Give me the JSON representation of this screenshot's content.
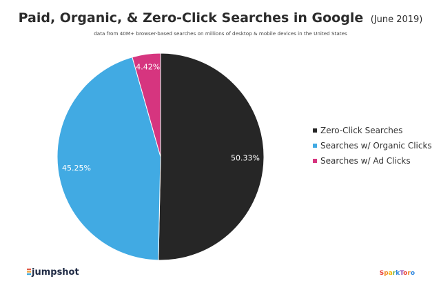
{
  "header": {
    "title": "Paid, Organic, & Zero-Click Searches in Google",
    "title_suffix": "(June 2019)",
    "subtitle": "data from 40M+ browser-based searches on millions of desktop & mobile devices in the United States"
  },
  "chart_data": {
    "type": "pie",
    "title": "Paid, Organic, & Zero-Click Searches in Google (June 2019)",
    "slices": [
      {
        "label": "Zero-Click Searches",
        "value": 50.33,
        "display": "50.33%",
        "color": "#262626"
      },
      {
        "label": "Searches w/ Organic Clicks",
        "value": 45.25,
        "display": "45.25%",
        "color": "#41aae3"
      },
      {
        "label": "Searches w/ Ad Clicks",
        "value": 4.42,
        "display": "4.42%",
        "color": "#d6357f"
      }
    ],
    "legend_position": "right"
  },
  "footer": {
    "left_logo": "jumpshot",
    "right_logo": "SparkToro"
  }
}
